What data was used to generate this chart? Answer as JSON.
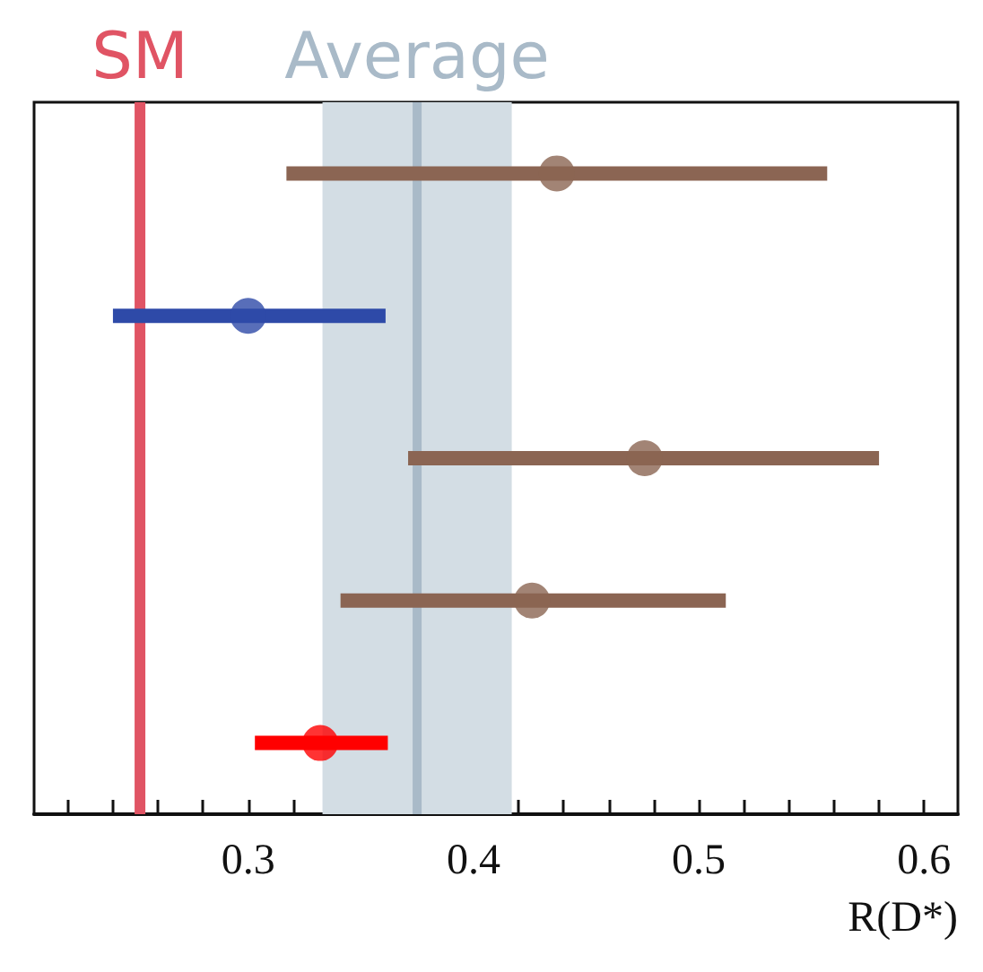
{
  "chart_data": {
    "type": "scatter",
    "orientation": "horizontal",
    "xlabel": "R(D*)",
    "categories": [
      null,
      null,
      null,
      null,
      null
    ],
    "values": [
      0.437,
      0.3,
      0.476,
      0.426,
      0.332
    ],
    "errors": [
      [
        0.317,
        0.557
      ],
      [
        0.24,
        0.361
      ],
      [
        0.371,
        0.58
      ],
      [
        0.341,
        0.512
      ],
      [
        0.303,
        0.362
      ]
    ],
    "colors": [
      "#8b6553",
      "#2e4aa8",
      "#8b6553",
      "#8b6553",
      "#ff0000"
    ],
    "marker": "circle",
    "xlim": [
      0.205,
      0.615
    ],
    "xticks": [
      {
        "value": 0.22,
        "label": null
      },
      {
        "value": 0.24,
        "label": null
      },
      {
        "value": 0.26,
        "label": null
      },
      {
        "value": 0.28,
        "label": null
      },
      0.3,
      {
        "value": 0.32,
        "label": null
      },
      {
        "value": 0.34,
        "label": null
      },
      {
        "value": 0.36,
        "label": null
      },
      {
        "value": 0.38,
        "label": null
      },
      0.4,
      {
        "value": 0.42,
        "label": null
      },
      {
        "value": 0.44,
        "label": null
      },
      {
        "value": 0.46,
        "label": null
      },
      {
        "value": 0.48,
        "label": null
      },
      0.5,
      {
        "value": 0.52,
        "label": null
      },
      {
        "value": 0.54,
        "label": null
      },
      {
        "value": 0.56,
        "label": null
      },
      {
        "value": 0.58,
        "label": null
      },
      0.6
    ],
    "tick_labels": "x",
    "ref_lines": [
      {
        "axis": "x",
        "value": 0.252,
        "label": "SM",
        "color": "#e05464"
      },
      {
        "axis": "x",
        "value": 0.375,
        "label": "Average",
        "color": "#a9bac8"
      }
    ],
    "bands": [
      {
        "axis": "x",
        "from": 0.333,
        "to": 0.417,
        "color": "#d3dde4"
      }
    ]
  }
}
